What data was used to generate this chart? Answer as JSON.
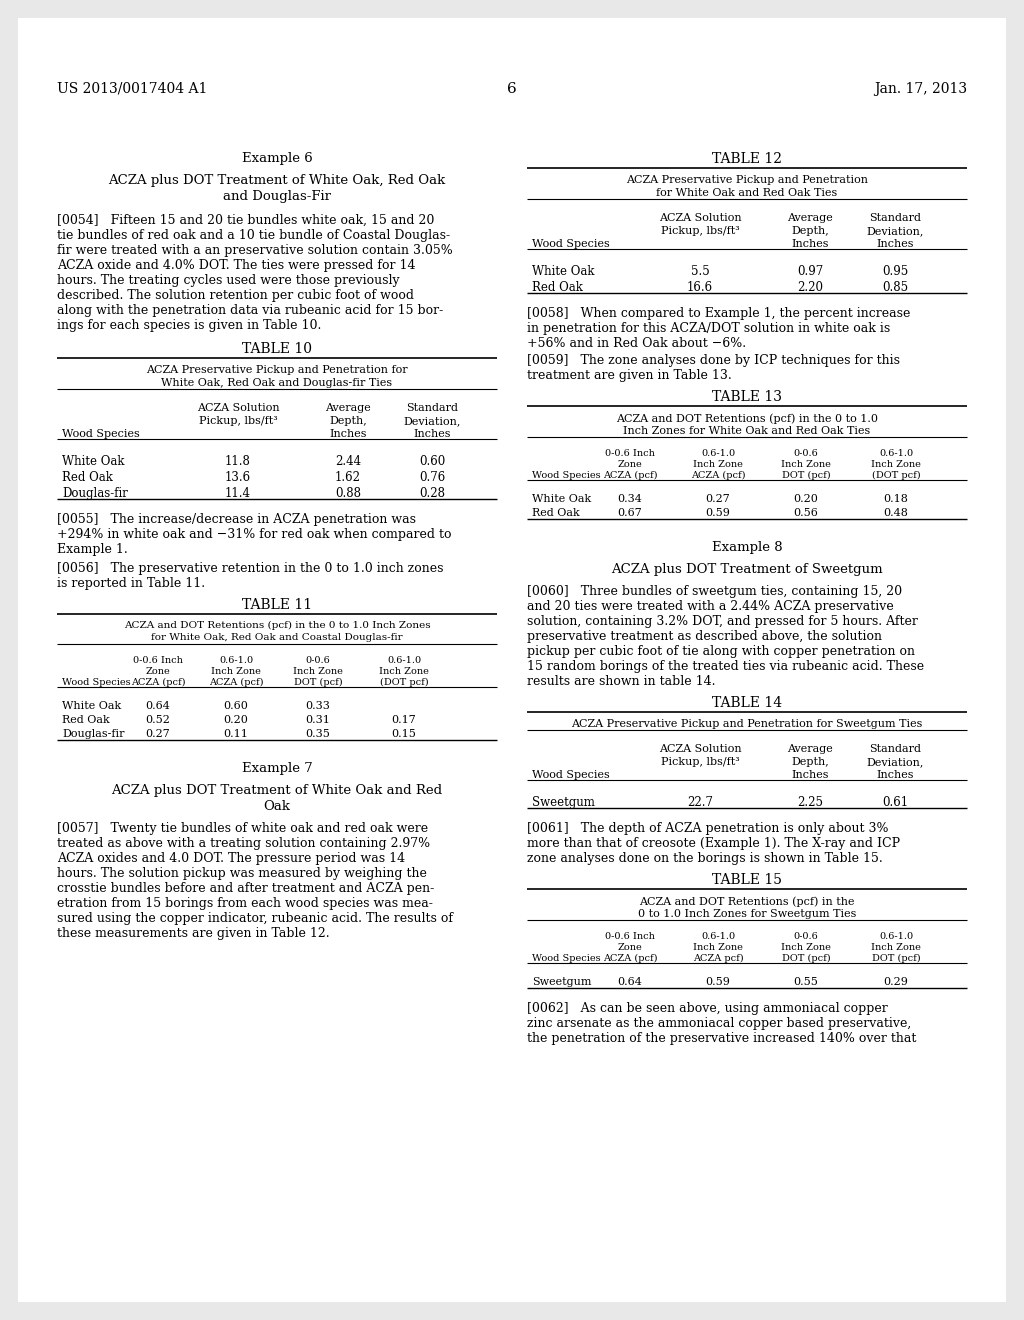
{
  "header_left": "US 2013/0017404 A1",
  "header_center": "6",
  "header_right": "Jan. 17, 2013",
  "left_col": {
    "example6_title": "Example 6",
    "example6_sub1": "ACZA plus DOT Treatment of White Oak, Red Oak",
    "example6_sub2": "and Douglas-Fir",
    "lines_0054": [
      "[0054]   Fifteen 15 and 20 tie bundles white oak, 15 and 20",
      "tie bundles of red oak and a 10 tie bundle of Coastal Douglas-",
      "fir were treated with a an preservative solution contain 3.05%",
      "ACZA oxide and 4.0% DOT. The ties were pressed for 14",
      "hours. The treating cycles used were those previously",
      "described. The solution retention per cubic foot of wood",
      "along with the penetration data via rubeanic acid for 15 bor-",
      "ings for each species is given in Table 10."
    ],
    "table10_title": "TABLE 10",
    "table10_sub1": "ACZA Preservative Pickup and Penetration for",
    "table10_sub2": "White Oak, Red Oak and Douglas-fir Ties",
    "table10_col1_h1": "ACZA Solution",
    "table10_col1_h2": "Pickup, lbs/ft³",
    "table10_col2_h1": "Average",
    "table10_col2_h2": "Depth,",
    "table10_col2_h3": "Inches",
    "table10_col3_h1": "Standard",
    "table10_col3_h2": "Deviation,",
    "table10_col3_h3": "Inches",
    "table10_colh_ws": "Wood Species",
    "table10_data": [
      [
        "White Oak",
        "11.8",
        "2.44",
        "0.60"
      ],
      [
        "Red Oak",
        "13.6",
        "1.62",
        "0.76"
      ],
      [
        "Douglas-fir",
        "11.4",
        "0.88",
        "0.28"
      ]
    ],
    "lines_0055": [
      "[0055]   The increase/decrease in ACZA penetration was",
      "+294% in white oak and −31% for red oak when compared to",
      "Example 1."
    ],
    "lines_0056": [
      "[0056]   The preservative retention in the 0 to 1.0 inch zones",
      "is reported in Table 11."
    ],
    "table11_title": "TABLE 11",
    "table11_sub1": "ACZA and DOT Retentions (pcf) in the 0 to 1.0 Inch Zones",
    "table11_sub2": "for White Oak, Red Oak and Coastal Douglas-fir",
    "table11_data": [
      [
        "White Oak",
        "0.64",
        "0.60",
        "0.33",
        ""
      ],
      [
        "Red Oak",
        "0.52",
        "0.20",
        "0.31",
        "0.17"
      ],
      [
        "Douglas-fir",
        "0.27",
        "0.11",
        "0.35",
        "0.15"
      ]
    ],
    "example7_title": "Example 7",
    "example7_sub1": "ACZA plus DOT Treatment of White Oak and Red",
    "example7_sub2": "Oak",
    "lines_0057": [
      "[0057]   Twenty tie bundles of white oak and red oak were",
      "treated as above with a treating solution containing 2.97%",
      "ACZA oxides and 4.0 DOT. The pressure period was 14",
      "hours. The solution pickup was measured by weighing the",
      "crosstie bundles before and after treatment and ACZA pen-",
      "etration from 15 borings from each wood species was mea-",
      "sured using the copper indicator, rubeanic acid. The results of",
      "these measurements are given in Table 12."
    ]
  },
  "right_col": {
    "table12_title": "TABLE 12",
    "table12_sub1": "ACZA Preservative Pickup and Penetration",
    "table12_sub2": "for White Oak and Red Oak Ties",
    "table12_data": [
      [
        "White Oak",
        "5.5",
        "0.97",
        "0.95"
      ],
      [
        "Red Oak",
        "16.6",
        "2.20",
        "0.85"
      ]
    ],
    "lines_0058": [
      "[0058]   When compared to Example 1, the percent increase",
      "in penetration for this ACZA/DOT solution in white oak is",
      "+56% and in Red Oak about −6%."
    ],
    "lines_0059": [
      "[0059]   The zone analyses done by ICP techniques for this",
      "treatment are given in Table 13."
    ],
    "table13_title": "TABLE 13",
    "table13_sub1": "ACZA and DOT Retentions (pcf) in the 0 to 1.0",
    "table13_sub2": "Inch Zones for White Oak and Red Oak Ties",
    "table13_data": [
      [
        "White Oak",
        "0.34",
        "0.27",
        "0.20",
        "0.18"
      ],
      [
        "Red Oak",
        "0.67",
        "0.59",
        "0.56",
        "0.48"
      ]
    ],
    "example8_title": "Example 8",
    "example8_sub": "ACZA plus DOT Treatment of Sweetgum",
    "lines_0060": [
      "[0060]   Three bundles of sweetgum ties, containing 15, 20",
      "and 20 ties were treated with a 2.44% ACZA preservative",
      "solution, containing 3.2% DOT, and pressed for 5 hours. After",
      "preservative treatment as described above, the solution",
      "pickup per cubic foot of tie along with copper penetration on",
      "15 random borings of the treated ties via rubeanic acid. These",
      "results are shown in table 14."
    ],
    "table14_title": "TABLE 14",
    "table14_sub1": "ACZA Preservative Pickup and Penetration for Sweetgum Ties",
    "table14_data": [
      [
        "Sweetgum",
        "22.7",
        "2.25",
        "0.61"
      ]
    ],
    "lines_0061": [
      "[0061]   The depth of ACZA penetration is only about 3%",
      "more than that of creosote (Example 1). The X-ray and ICP",
      "zone analyses done on the borings is shown in Table 15."
    ],
    "table15_title": "TABLE 15",
    "table15_sub1": "ACZA and DOT Retentions (pcf) in the",
    "table15_sub2": "0 to 1.0 Inch Zones for Sweetgum Ties",
    "table15_data": [
      [
        "Sweetgum",
        "0.64",
        "0.59",
        "0.55",
        "0.29"
      ]
    ],
    "lines_0062": [
      "[0062]   As can be seen above, using ammoniacal copper",
      "zinc arsenate as the ammoniacal copper based preservative,",
      "the penetration of the preservative increased 140% over that"
    ]
  }
}
